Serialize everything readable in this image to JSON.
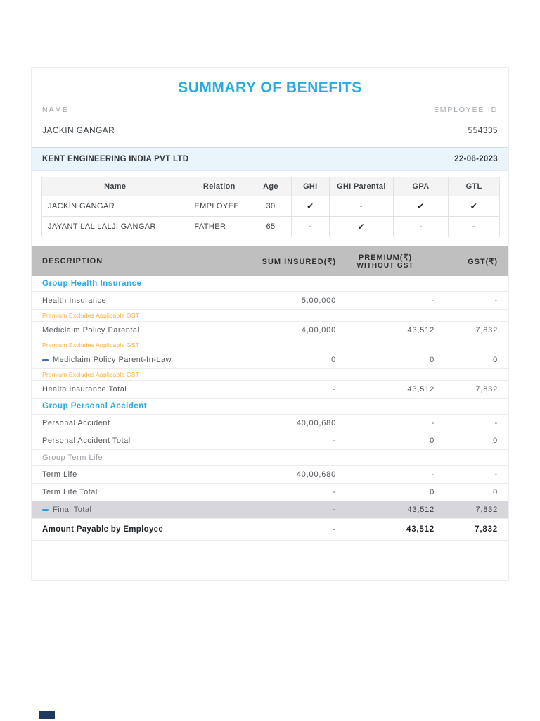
{
  "title": "SUMMARY OF BENEFITS",
  "colors": {
    "accent": "#29ABE2",
    "note": "#FBB034",
    "header_bg": "#BFBFBF",
    "final_bg": "#D6D6DB",
    "company_bg": "#EAF4FB"
  },
  "header": {
    "name_label": "NAME",
    "employee_id_label": "EMPLOYEE ID",
    "name_value": "JACKIN GANGAR",
    "employee_id_value": "554335",
    "company": "KENT ENGINEERING INDIA PVT LTD",
    "date": "22-06-2023"
  },
  "members_table": {
    "columns": [
      "Name",
      "Relation",
      "Age",
      "GHI",
      "GHI Parental",
      "GPA",
      "GTL"
    ],
    "rows": [
      [
        "JACKIN GANGAR",
        "EMPLOYEE",
        "30",
        "✔",
        "-",
        "✔",
        "✔"
      ],
      [
        "JAYANTILAL LALJI GANGAR",
        "FATHER",
        "65",
        "-",
        "✔",
        "-",
        "-"
      ]
    ]
  },
  "benefits_table": {
    "columns": [
      {
        "label": "DESCRIPTION"
      },
      {
        "label": "SUM INSURED(₹)"
      },
      {
        "label": "PREMIUM(₹)",
        "sub": "WITHOUT GST"
      },
      {
        "label": "GST(₹)"
      }
    ],
    "rows": [
      {
        "type": "section-cyan",
        "label": "Group Health Insurance"
      },
      {
        "type": "item",
        "label": "Health Insurance",
        "sum": "5,00,000",
        "premium": "-",
        "gst": "-"
      },
      {
        "type": "note",
        "label": "Premium Excludes Applicable GST"
      },
      {
        "type": "item",
        "label": "Mediclaim Policy Parental",
        "sum": "4,00,000",
        "premium": "43,512",
        "gst": "7,832"
      },
      {
        "type": "note",
        "label": "Premium Excludes Applicable GST"
      },
      {
        "type": "item",
        "dash": true,
        "label": "Mediclaim Policy Parent-In-Law",
        "sum": "0",
        "premium": "0",
        "gst": "0"
      },
      {
        "type": "note",
        "label": "Premium Excludes Applicable GST"
      },
      {
        "type": "item",
        "label": "Health Insurance Total",
        "sum": "-",
        "premium": "43,512",
        "gst": "7,832"
      },
      {
        "type": "section-cyan",
        "label": "Group Personal Accident"
      },
      {
        "type": "item",
        "label": "Personal Accident",
        "sum": "40,00,680",
        "premium": "-",
        "gst": "-"
      },
      {
        "type": "item",
        "label": "Personal Accident Total",
        "sum": "-",
        "premium": "0",
        "gst": "0"
      },
      {
        "type": "section-gray",
        "label": "Group Term Life"
      },
      {
        "type": "item",
        "label": "Term Life",
        "sum": "40,00,680",
        "premium": "-",
        "gst": "-"
      },
      {
        "type": "item",
        "label": "Term Life Total",
        "sum": "-",
        "premium": "0",
        "gst": "0"
      },
      {
        "type": "final",
        "dash": true,
        "label": "Final Total",
        "sum": "-",
        "premium": "43,512",
        "gst": "7,832"
      },
      {
        "type": "payable",
        "label": "Amount Payable by Employee",
        "sum": "-",
        "premium": "43,512",
        "gst": "7,832"
      }
    ]
  }
}
